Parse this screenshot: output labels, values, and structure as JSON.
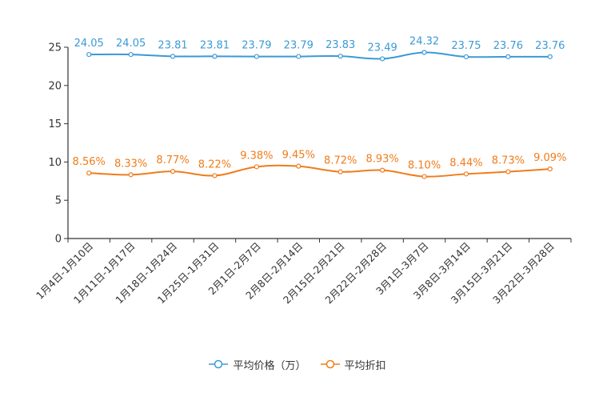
{
  "chart_data": {
    "type": "line",
    "title": "",
    "xlabel": "",
    "ylabel": "",
    "ylim": [
      0,
      25
    ],
    "yticks": [
      "0",
      "5",
      "10",
      "15",
      "20",
      "25"
    ],
    "categories": [
      "1月4日-1月10日",
      "1月11日-1月17日",
      "1月18日-1月24日",
      "1月25日-1月31日",
      "2月1日-2月7日",
      "2月8日-2月14日",
      "2月15日-2月21日",
      "2月22日-2月28日",
      "3月1日-3月7日",
      "3月8日-3月14日",
      "3月15日-3月21日",
      "3月22日-3月28日"
    ],
    "series": [
      {
        "name": "平均价格（万）",
        "color": "#3a9ad6",
        "values": [
          24.05,
          24.05,
          23.81,
          23.81,
          23.79,
          23.79,
          23.83,
          23.49,
          24.32,
          23.75,
          23.76,
          23.76
        ],
        "labels": [
          "24.05",
          "24.05",
          "23.81",
          "23.81",
          "23.79",
          "23.79",
          "23.83",
          "23.49",
          "24.32",
          "23.75",
          "23.76",
          "23.76"
        ]
      },
      {
        "name": "平均折扣",
        "color": "#f07c1a",
        "values": [
          8.56,
          8.33,
          8.77,
          8.22,
          9.38,
          9.45,
          8.72,
          8.93,
          8.1,
          8.44,
          8.73,
          9.09
        ],
        "labels": [
          "8.56%",
          "8.33%",
          "8.77%",
          "8.22%",
          "9.38%",
          "9.45%",
          "8.72%",
          "8.93%",
          "8.10%",
          "8.44%",
          "8.73%",
          "9.09%"
        ]
      }
    ],
    "legend_position": "bottom-center"
  },
  "legend": {
    "price_label": "平均价格（万）",
    "discount_label": "平均折扣"
  }
}
